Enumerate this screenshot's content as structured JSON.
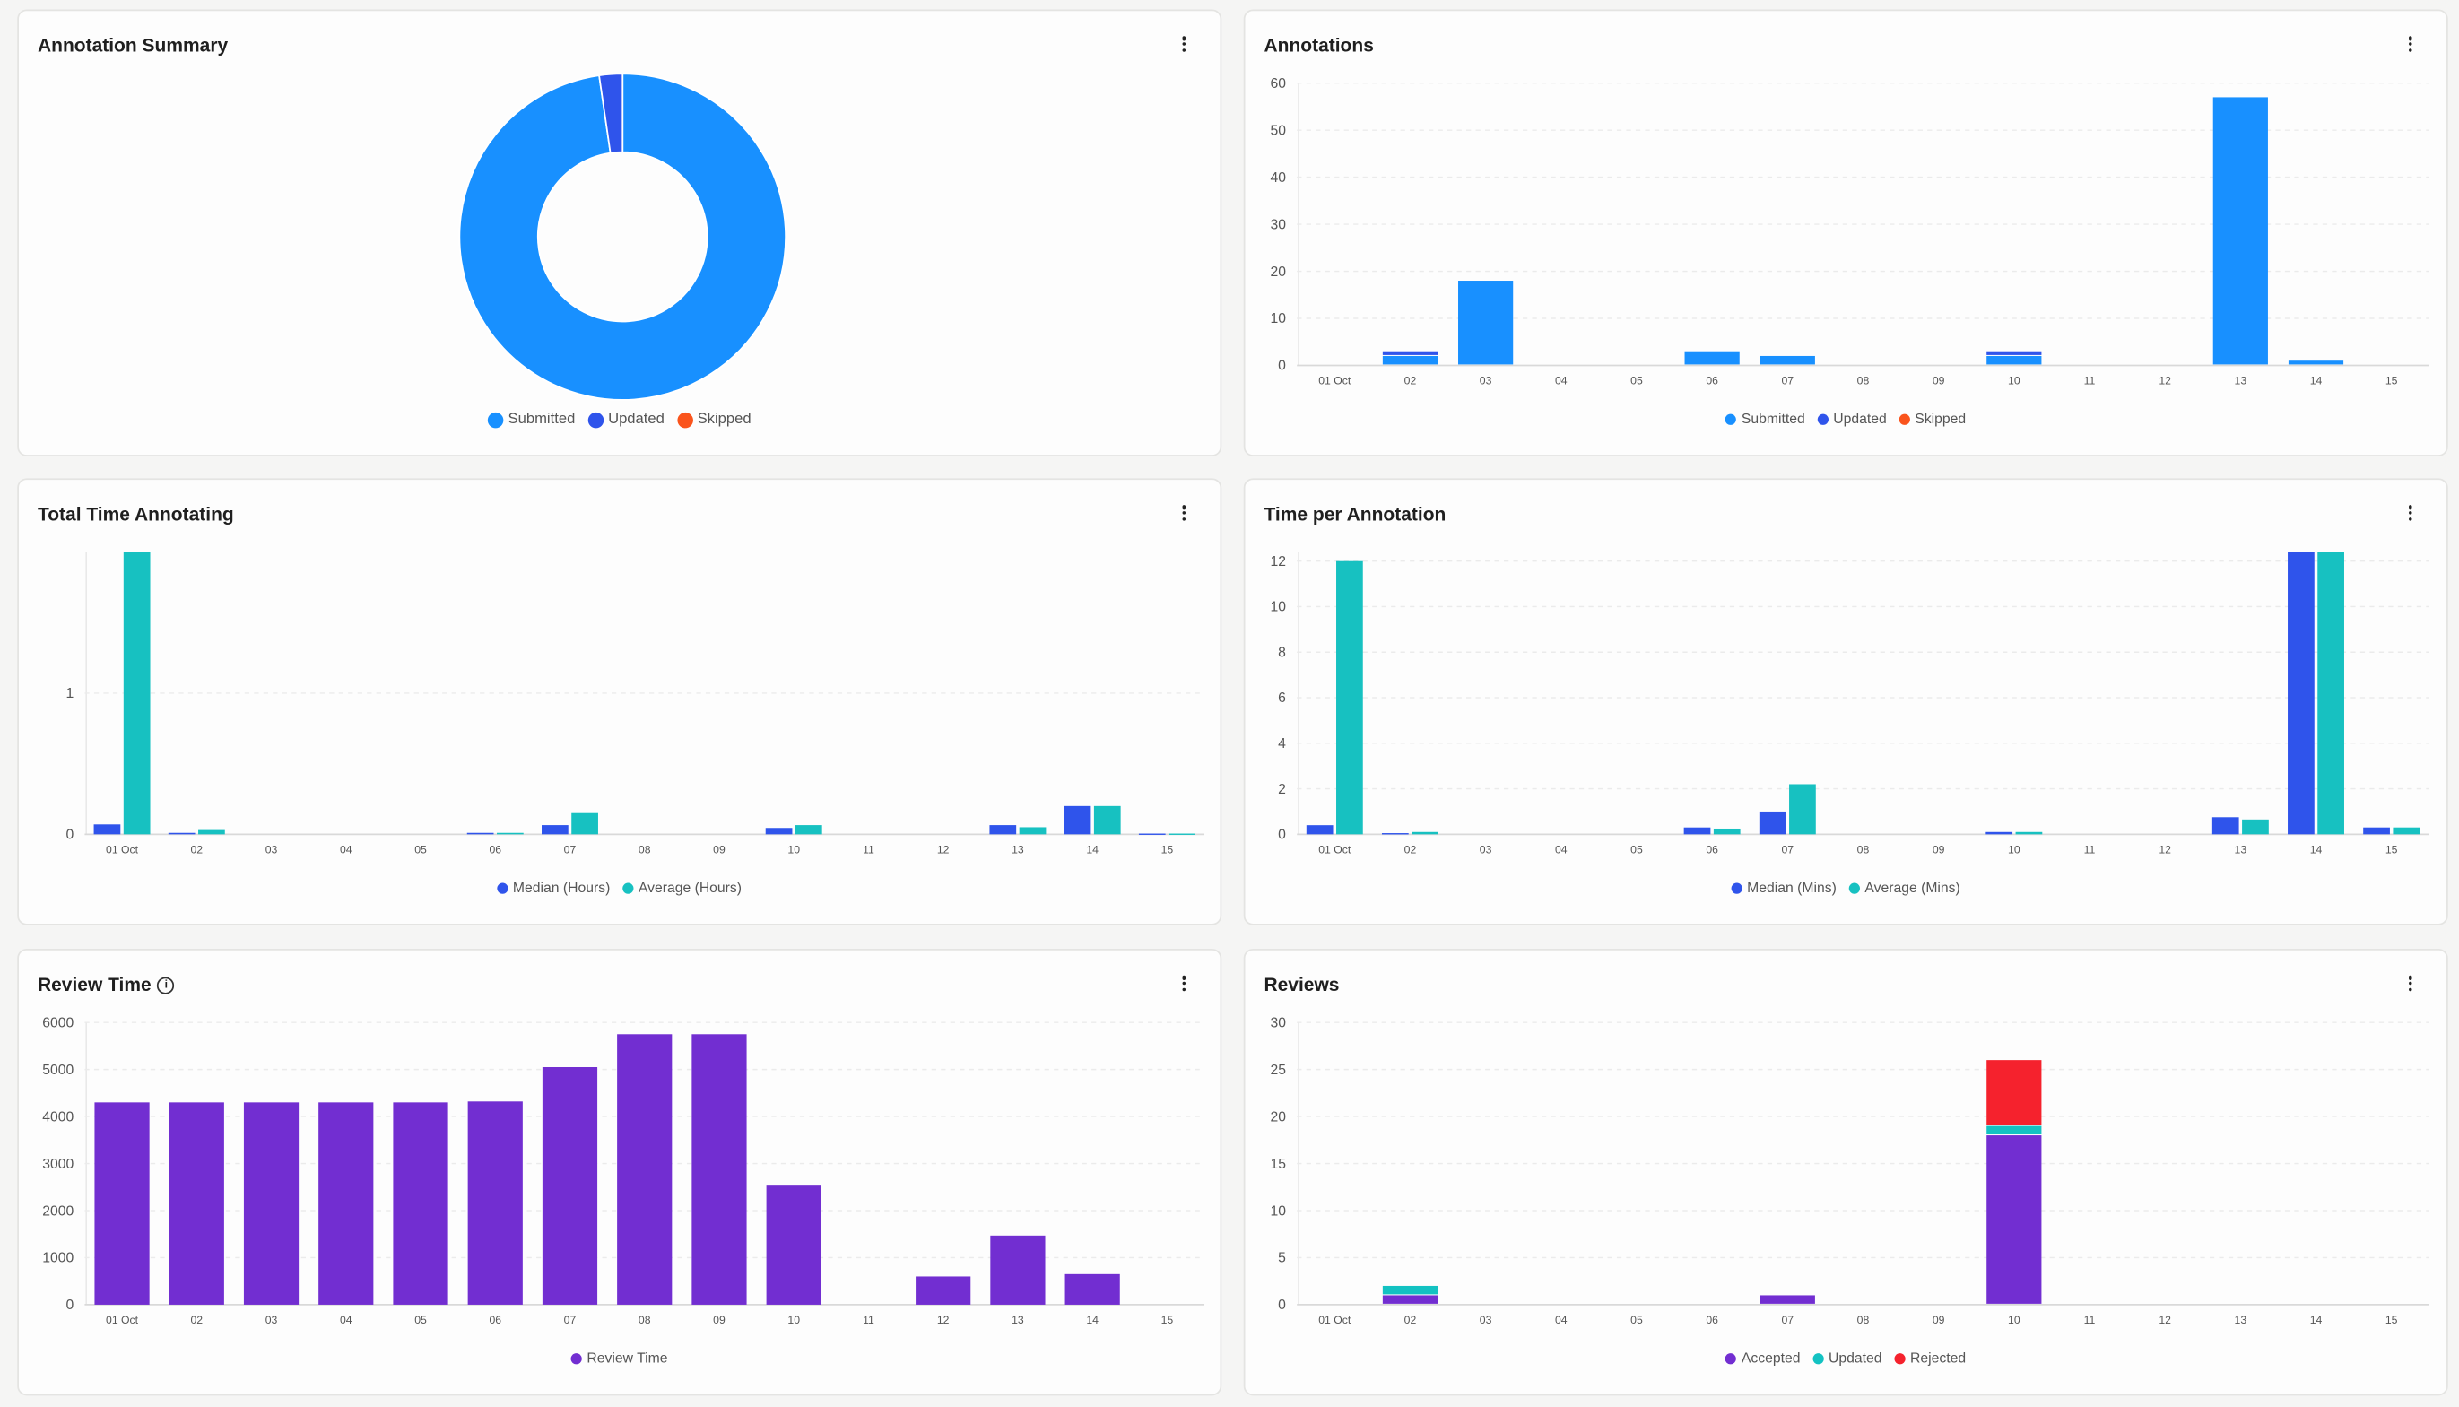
{
  "colors": {
    "panel_bg": "#fdfdfd",
    "page_bg": "#f5f5f4"
  },
  "chart_data": [
    {
      "type": "pie",
      "style": "donut",
      "title": "Annotation Summary",
      "series": [
        {
          "name": "Submitted",
          "value": 85,
          "color": "#1890ff"
        },
        {
          "name": "Updated",
          "value": 2,
          "color": "#2f54eb"
        },
        {
          "name": "Skipped",
          "value": 0,
          "color": "#fa541c"
        }
      ],
      "legend": "bottom"
    },
    {
      "type": "bar",
      "mode": "stacked",
      "title": "Annotations",
      "categories": [
        "01 Oct",
        "02",
        "03",
        "04",
        "05",
        "06",
        "07",
        "08",
        "09",
        "10",
        "11",
        "12",
        "13",
        "14",
        "15"
      ],
      "series": [
        {
          "name": "Submitted",
          "color": "#1890ff",
          "values": [
            0,
            2,
            18,
            0,
            0,
            3,
            2,
            0,
            0,
            2,
            0,
            0,
            57,
            1,
            0
          ]
        },
        {
          "name": "Updated",
          "color": "#2f54eb",
          "values": [
            0,
            1,
            0,
            0,
            0,
            0,
            0,
            0,
            0,
            1,
            0,
            0,
            0,
            0,
            0
          ]
        },
        {
          "name": "Skipped",
          "color": "#fa541c",
          "values": [
            0,
            0,
            0,
            0,
            0,
            0,
            0,
            0,
            0,
            0,
            0,
            0,
            0,
            0,
            0
          ]
        }
      ],
      "ylim": [
        0,
        60
      ],
      "yticks": [
        0,
        10,
        20,
        30,
        40,
        50,
        60
      ],
      "grid": true,
      "legend": "bottom"
    },
    {
      "type": "bar",
      "mode": "grouped",
      "title": "Total Time Annotating",
      "categories": [
        "01 Oct",
        "02",
        "03",
        "04",
        "05",
        "06",
        "07",
        "08",
        "09",
        "10",
        "11",
        "12",
        "13",
        "14",
        "15"
      ],
      "series": [
        {
          "name": "Median (Hours)",
          "color": "#2f54eb",
          "values": [
            0.07,
            0.01,
            0,
            0,
            0,
            0.01,
            0.065,
            0,
            0,
            0.045,
            0,
            0,
            0.065,
            0.2,
            0.005
          ]
        },
        {
          "name": "Average (Hours)",
          "color": "#17c1c1",
          "values": [
            2.0,
            0.03,
            0,
            0,
            0,
            0.01,
            0.15,
            0,
            0,
            0.065,
            0,
            0,
            0.05,
            0.2,
            0.005
          ]
        }
      ],
      "ylim": [
        0,
        2
      ],
      "yticks": [
        0,
        1
      ],
      "grid": true,
      "legend": "bottom"
    },
    {
      "type": "bar",
      "mode": "grouped",
      "title": "Time per Annotation",
      "categories": [
        "01 Oct",
        "02",
        "03",
        "04",
        "05",
        "06",
        "07",
        "08",
        "09",
        "10",
        "11",
        "12",
        "13",
        "14",
        "15"
      ],
      "series": [
        {
          "name": "Median (Mins)",
          "color": "#2f54eb",
          "values": [
            0.4,
            0.05,
            0,
            0,
            0,
            0.3,
            1.0,
            0,
            0,
            0.1,
            0,
            0,
            0.75,
            12.4,
            0.3
          ]
        },
        {
          "name": "Average (Mins)",
          "color": "#17c1c1",
          "values": [
            12,
            0.1,
            0,
            0,
            0,
            0.25,
            2.2,
            0,
            0,
            0.1,
            0,
            0,
            0.65,
            12.4,
            0.3
          ]
        }
      ],
      "ylim": [
        0,
        12.4
      ],
      "yticks": [
        0,
        2,
        4,
        6,
        8,
        10,
        12
      ],
      "grid": true,
      "legend": "bottom"
    },
    {
      "type": "bar",
      "mode": "single",
      "title": "Review Time",
      "info_icon": "info-circle-icon",
      "categories": [
        "01 Oct",
        "02",
        "03",
        "04",
        "05",
        "06",
        "07",
        "08",
        "09",
        "10",
        "11",
        "12",
        "13",
        "14",
        "15"
      ],
      "series": [
        {
          "name": "Review Time",
          "color": "#722ed1",
          "values": [
            4300,
            4300,
            4300,
            4300,
            4300,
            4320,
            5050,
            5750,
            5750,
            2550,
            0,
            600,
            1470,
            650,
            0
          ]
        }
      ],
      "ylim": [
        0,
        6000
      ],
      "yticks": [
        0,
        1000,
        2000,
        3000,
        4000,
        5000,
        6000
      ],
      "grid": true,
      "legend": "bottom"
    },
    {
      "type": "bar",
      "mode": "stacked",
      "title": "Reviews",
      "categories": [
        "01 Oct",
        "02",
        "03",
        "04",
        "05",
        "06",
        "07",
        "08",
        "09",
        "10",
        "11",
        "12",
        "13",
        "14",
        "15"
      ],
      "series": [
        {
          "name": "Accepted",
          "color": "#722ed1",
          "values": [
            0,
            1,
            0,
            0,
            0,
            0,
            1,
            0,
            0,
            18,
            0,
            0,
            0,
            0,
            0
          ]
        },
        {
          "name": "Updated",
          "color": "#13c2c2",
          "values": [
            0,
            1,
            0,
            0,
            0,
            0,
            0,
            0,
            0,
            1,
            0,
            0,
            0,
            0,
            0
          ]
        },
        {
          "name": "Rejected",
          "color": "#f5222d",
          "values": [
            0,
            0,
            0,
            0,
            0,
            0,
            0,
            0,
            0,
            7,
            0,
            0,
            0,
            0,
            0
          ]
        }
      ],
      "ylim": [
        0,
        30
      ],
      "yticks": [
        0,
        5,
        10,
        15,
        20,
        25,
        30
      ],
      "grid": true,
      "legend": "bottom"
    }
  ]
}
